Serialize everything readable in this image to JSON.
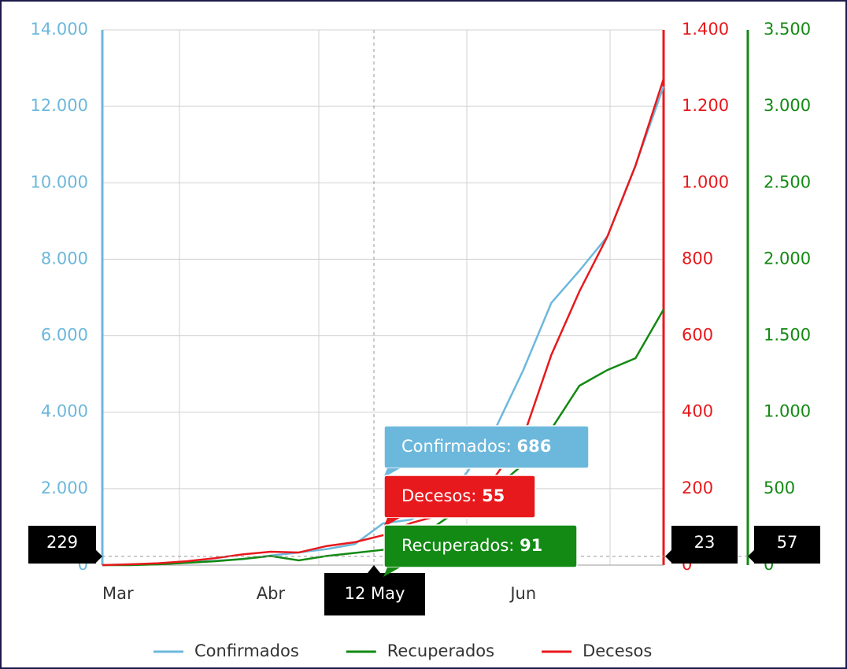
{
  "chart_data": {
    "type": "line",
    "categories": [
      "Mar",
      null,
      null,
      null,
      null,
      null,
      "Abr",
      null,
      null,
      null,
      null,
      null,
      null,
      null,
      null,
      "Jun",
      null,
      null,
      null,
      null,
      null
    ],
    "series": [
      {
        "name": "Confirmados",
        "color": "#6cb8dc",
        "axis": "y",
        "values": [
          0,
          20,
          40,
          70,
          110,
          160,
          250,
          330,
          420,
          550,
          1090,
          1190,
          1600,
          2430,
          3560,
          5100,
          6860,
          7700,
          8600,
          10460,
          12520
        ]
      },
      {
        "name": "Recuperados",
        "color": "#138a13",
        "axis": "y3",
        "values": [
          0,
          0,
          5,
          15,
          25,
          40,
          60,
          31,
          60,
          80,
          100,
          144,
          273,
          400,
          504,
          659,
          890,
          1173,
          1276,
          1353,
          1672
        ]
      },
      {
        "name": "Decesos",
        "color": "#e8191c",
        "axis": "y2",
        "values": [
          0,
          2,
          5,
          10,
          18,
          28,
          35,
          33,
          50,
          60,
          78,
          110,
          130,
          160,
          232,
          335,
          550,
          716,
          860,
          1045,
          1272
        ]
      }
    ],
    "ylim": [
      0,
      14000
    ],
    "yticks": [
      0,
      {
        "value": 2000,
        "label": "2.000"
      },
      {
        "value": 4000,
        "label": "4.000"
      },
      {
        "value": 6000,
        "label": "6.000"
      },
      {
        "value": 8000,
        "label": "8.000"
      },
      {
        "value": 10000,
        "label": "10.000"
      },
      {
        "value": 12000,
        "label": "12.000"
      },
      {
        "value": 14000,
        "label": "14.000"
      }
    ],
    "y2lim": [
      0,
      1400
    ],
    "y2ticks": [
      0,
      200,
      400,
      600,
      800,
      {
        "value": 1000,
        "label": "1.000"
      },
      {
        "value": 1200,
        "label": "1.200"
      },
      {
        "value": 1400,
        "label": "1.400"
      }
    ],
    "y3lim": [
      0,
      3500
    ],
    "y3ticks": [
      0,
      500,
      {
        "value": 1000,
        "label": "1.000"
      },
      {
        "value": 1500,
        "label": "1.500"
      },
      {
        "value": 2000,
        "label": "2.000"
      },
      {
        "value": 2500,
        "label": "2.500"
      },
      {
        "value": 3000,
        "label": "3.000"
      },
      {
        "value": 3500,
        "label": "3.500"
      }
    ],
    "grid": true,
    "legend": "bottom",
    "crosshair": {
      "y": 229,
      "y2": 23,
      "y3": 57,
      "x_label": "12 May"
    },
    "tooltip": [
      {
        "label": "Confirmados:",
        "value": 686
      },
      {
        "label": "Decesos:",
        "value": 55
      },
      {
        "label": "Recuperados:",
        "value": 91
      }
    ]
  }
}
